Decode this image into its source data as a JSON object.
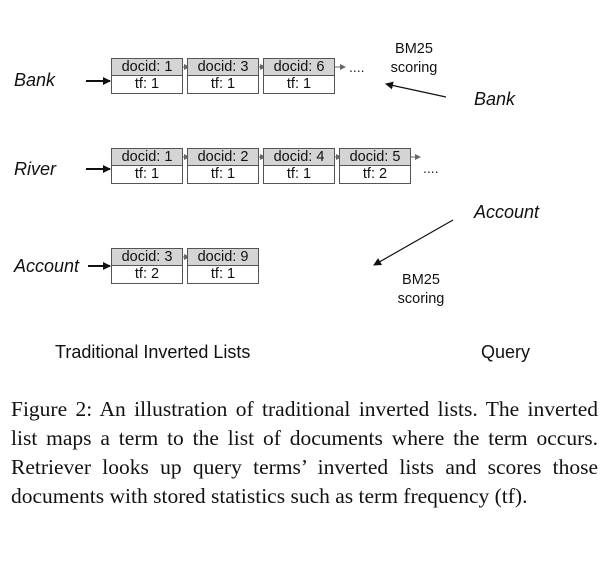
{
  "figure": {
    "lists": [
      {
        "term": "Bank",
        "postings": [
          {
            "docid": "docid: 1",
            "tf": "tf: 1"
          },
          {
            "docid": "docid: 3",
            "tf": "tf: 1"
          },
          {
            "docid": "docid: 6",
            "tf": "tf: 1"
          }
        ],
        "ellipsis": "...."
      },
      {
        "term": "River",
        "postings": [
          {
            "docid": "docid: 1",
            "tf": "tf: 1"
          },
          {
            "docid": "docid: 2",
            "tf": "tf: 1"
          },
          {
            "docid": "docid: 4",
            "tf": "tf: 1"
          },
          {
            "docid": "docid: 5",
            "tf": "tf: 2"
          }
        ],
        "ellipsis": "...."
      },
      {
        "term": "Account",
        "postings": [
          {
            "docid": "docid: 3",
            "tf": "tf: 2"
          },
          {
            "docid": "docid: 9",
            "tf": "tf: 1"
          }
        ]
      }
    ],
    "query_terms": [
      "Bank",
      "Account"
    ],
    "scoring_top": {
      "line1": "BM25",
      "line2": "scoring"
    },
    "scoring_bottom": {
      "line1": "BM25",
      "line2": "scoring"
    },
    "left_label": "Traditional Inverted Lists",
    "right_label": "Query"
  },
  "caption": "Figure 2: An illustration of traditional inverted lists. The inverted list maps a term to the list of documents where the term occurs. Retriever looks up query terms’ inverted lists and scores those documents with stored statistics such as term frequency (tf)."
}
